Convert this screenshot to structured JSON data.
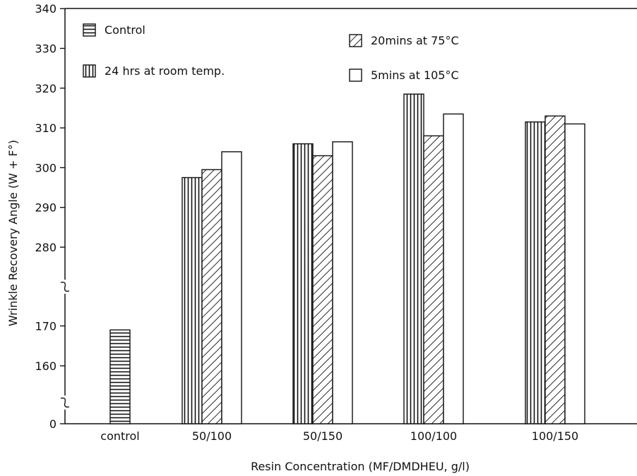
{
  "chart_data": {
    "type": "bar",
    "xlabel": "Resin Concentration (MF/DMDHEU, g/l)",
    "ylabel": "Wrinkle Recovery Angle (W + F°)",
    "categories": [
      "control",
      "50/100",
      "50/150",
      "100/100",
      "100/150"
    ],
    "series": [
      {
        "name": "Control",
        "values": [
          169,
          null,
          null,
          null,
          null
        ]
      },
      {
        "name": "24 hrs at room temp.",
        "values": [
          null,
          297.5,
          306,
          318.5,
          311.5
        ]
      },
      {
        "name": "20mins at 75°C",
        "values": [
          null,
          299.5,
          303,
          308,
          313
        ]
      },
      {
        "name": "5mins at 105°C",
        "values": [
          null,
          304,
          306.5,
          313.5,
          311
        ]
      }
    ],
    "y_ticks": [
      "0",
      "160",
      "170",
      "280",
      "290",
      "300",
      "310",
      "320",
      "330",
      "340"
    ],
    "y_axis_breaks": true,
    "legend_position": "top",
    "grid": false,
    "colors": {
      "ink": "#111111",
      "background": "#ffffff"
    }
  }
}
